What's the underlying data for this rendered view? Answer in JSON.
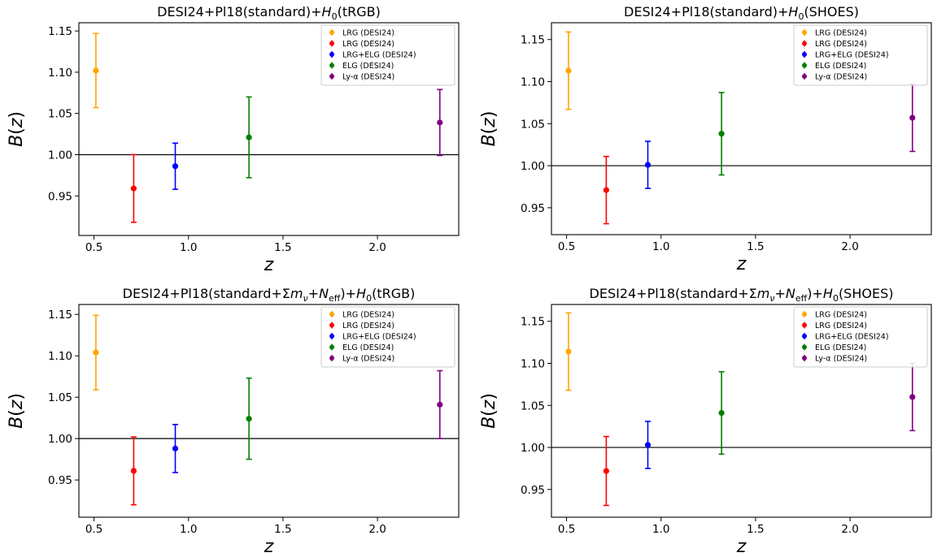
{
  "figure": {
    "panels": [
      {
        "title": "DESI24+Pl18(standard)+H0(tRGB)"
      },
      {
        "title": "DESI24+Pl18(standard)+H0(SHOES)"
      },
      {
        "title": "DESI24+Pl18(standard+Σmν+Neff)+H0(tRGB)"
      },
      {
        "title": "DESI24+Pl18(standard+Σmν+Neff)+H0(SHOES)"
      }
    ]
  },
  "colors": {
    "LRG_1": "#FFA500",
    "LRG_2": "#FF0000",
    "LRG_ELG": "#0000FF",
    "ELG": "#008000",
    "Lya": "#800080"
  },
  "chart_data": [
    {
      "type": "scatter",
      "title": "DESI24+Pl18(standard)+H0(tRGB)",
      "xlabel": "z",
      "ylabel": "B(z)",
      "xlim": [
        0.42,
        2.43
      ],
      "ylim": [
        0.902,
        1.16
      ],
      "xticks": [
        "0.5",
        "1.0",
        "1.5",
        "2.0"
      ],
      "yticks": [
        "0.95",
        "1.00",
        "1.05",
        "1.10",
        "1.15"
      ],
      "reference_line": 1.0,
      "legend_position": "top-right",
      "grid": false,
      "series": [
        {
          "name": "LRG (DESI24)",
          "color_key": "LRG_1",
          "x": 0.51,
          "y": 1.102,
          "yerr": 0.045
        },
        {
          "name": "LRG (DESI24)",
          "color_key": "LRG_2",
          "x": 0.71,
          "y": 0.959,
          "yerr": 0.041
        },
        {
          "name": "LRG+ELG (DESI24)",
          "color_key": "LRG_ELG",
          "x": 0.93,
          "y": 0.986,
          "yerr": 0.028
        },
        {
          "name": "ELG (DESI24)",
          "color_key": "ELG",
          "x": 1.32,
          "y": 1.021,
          "yerr": 0.049
        },
        {
          "name": "Ly-α (DESI24)",
          "color_key": "Lya",
          "x": 2.33,
          "y": 1.039,
          "yerr": 0.04
        }
      ]
    },
    {
      "type": "scatter",
      "title": "DESI24+Pl18(standard)+H0(SHOES)",
      "xlabel": "z",
      "ylabel": "B(z)",
      "xlim": [
        0.42,
        2.43
      ],
      "ylim": [
        0.918,
        1.17
      ],
      "xticks": [
        "0.5",
        "1.0",
        "1.5",
        "2.0"
      ],
      "yticks": [
        "0.95",
        "1.00",
        "1.05",
        "1.10",
        "1.15"
      ],
      "reference_line": 1.0,
      "legend_position": "top-right",
      "grid": false,
      "series": [
        {
          "name": "LRG (DESI24)",
          "color_key": "LRG_1",
          "x": 0.51,
          "y": 1.113,
          "yerr": 0.046
        },
        {
          "name": "LRG (DESI24)",
          "color_key": "LRG_2",
          "x": 0.71,
          "y": 0.971,
          "yerr": 0.04
        },
        {
          "name": "LRG+ELG (DESI24)",
          "color_key": "LRG_ELG",
          "x": 0.93,
          "y": 1.001,
          "yerr": 0.028
        },
        {
          "name": "ELG (DESI24)",
          "color_key": "ELG",
          "x": 1.32,
          "y": 1.038,
          "yerr": 0.049
        },
        {
          "name": "Ly-α (DESI24)",
          "color_key": "Lya",
          "x": 2.33,
          "y": 1.057,
          "yerr": 0.04
        }
      ]
    },
    {
      "type": "scatter",
      "title": "DESI24+Pl18(standard+Σmν+Neff)+H0(tRGB)",
      "xlabel": "z",
      "ylabel": "B(z)",
      "xlim": [
        0.42,
        2.43
      ],
      "ylim": [
        0.905,
        1.162
      ],
      "xticks": [
        "0.5",
        "1.0",
        "1.5",
        "2.0"
      ],
      "yticks": [
        "0.95",
        "1.00",
        "1.05",
        "1.10",
        "1.15"
      ],
      "reference_line": 1.0,
      "legend_position": "top-right",
      "grid": false,
      "series": [
        {
          "name": "LRG (DESI24)",
          "color_key": "LRG_1",
          "x": 0.51,
          "y": 1.104,
          "yerr": 0.045
        },
        {
          "name": "LRG (DESI24)",
          "color_key": "LRG_2",
          "x": 0.71,
          "y": 0.961,
          "yerr": 0.041
        },
        {
          "name": "LRG+ELG (DESI24)",
          "color_key": "LRG_ELG",
          "x": 0.93,
          "y": 0.988,
          "yerr": 0.029
        },
        {
          "name": "ELG (DESI24)",
          "color_key": "ELG",
          "x": 1.32,
          "y": 1.024,
          "yerr": 0.049
        },
        {
          "name": "Ly-α (DESI24)",
          "color_key": "Lya",
          "x": 2.33,
          "y": 1.041,
          "yerr": 0.041
        }
      ]
    },
    {
      "type": "scatter",
      "title": "DESI24+Pl18(standard+Σmν+Neff)+H0(SHOES)",
      "xlabel": "z",
      "ylabel": "B(z)",
      "xlim": [
        0.42,
        2.43
      ],
      "ylim": [
        0.917,
        1.17
      ],
      "xticks": [
        "0.5",
        "1.0",
        "1.5",
        "2.0"
      ],
      "yticks": [
        "0.95",
        "1.00",
        "1.05",
        "1.10",
        "1.15"
      ],
      "reference_line": 1.0,
      "legend_position": "top-right",
      "grid": false,
      "series": [
        {
          "name": "LRG (DESI24)",
          "color_key": "LRG_1",
          "x": 0.51,
          "y": 1.114,
          "yerr": 0.046
        },
        {
          "name": "LRG (DESI24)",
          "color_key": "LRG_2",
          "x": 0.71,
          "y": 0.972,
          "yerr": 0.041
        },
        {
          "name": "LRG+ELG (DESI24)",
          "color_key": "LRG_ELG",
          "x": 0.93,
          "y": 1.003,
          "yerr": 0.028
        },
        {
          "name": "ELG (DESI24)",
          "color_key": "ELG",
          "x": 1.32,
          "y": 1.041,
          "yerr": 0.049
        },
        {
          "name": "Ly-α (DESI24)",
          "color_key": "Lya",
          "x": 2.33,
          "y": 1.06,
          "yerr": 0.04
        }
      ]
    }
  ]
}
